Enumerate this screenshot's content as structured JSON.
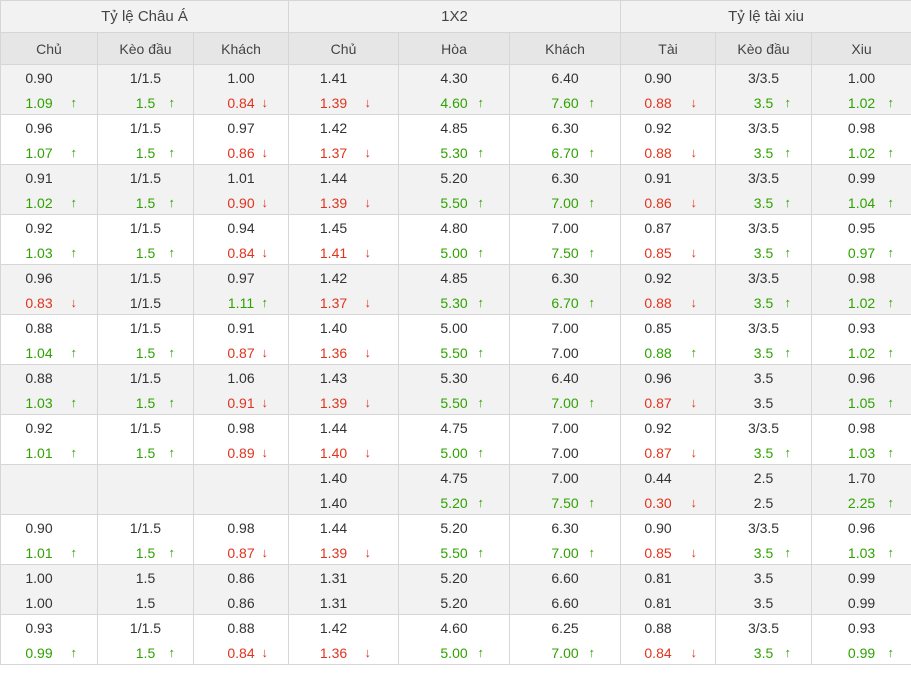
{
  "groups": [
    {
      "label": "Tỷ lệ Châu Á"
    },
    {
      "label": "1X2"
    },
    {
      "label": "Tỷ lệ tài xiu"
    }
  ],
  "columns": [
    {
      "label": "Chủ"
    },
    {
      "label": "Kèo đầu"
    },
    {
      "label": "Khách"
    },
    {
      "label": "Chủ"
    },
    {
      "label": "Hòa"
    },
    {
      "label": "Khách"
    },
    {
      "label": "Tài"
    },
    {
      "label": "Kèo đầu"
    },
    {
      "label": "Xiu"
    }
  ],
  "colors": {
    "up": "#2ea300",
    "down": "#e0341e",
    "text": "#333333"
  },
  "trend_icons": {
    "up": "arrow-up-icon",
    "down": "arrow-down-icon"
  },
  "rows": [
    {
      "cells": [
        {
          "open": "0.90",
          "now": "1.09",
          "trend": "up"
        },
        {
          "open": "1/1.5",
          "now": "1.5",
          "trend": "up"
        },
        {
          "open": "1.00",
          "now": "0.84",
          "trend": "down"
        },
        {
          "open": "1.41",
          "now": "1.39",
          "trend": "down"
        },
        {
          "open": "4.30",
          "now": "4.60",
          "trend": "up"
        },
        {
          "open": "6.40",
          "now": "7.60",
          "trend": "up"
        },
        {
          "open": "0.90",
          "now": "0.88",
          "trend": "down"
        },
        {
          "open": "3/3.5",
          "now": "3.5",
          "trend": "up"
        },
        {
          "open": "1.00",
          "now": "1.02",
          "trend": "up"
        }
      ]
    },
    {
      "cells": [
        {
          "open": "0.96",
          "now": "1.07",
          "trend": "up"
        },
        {
          "open": "1/1.5",
          "now": "1.5",
          "trend": "up"
        },
        {
          "open": "0.97",
          "now": "0.86",
          "trend": "down"
        },
        {
          "open": "1.42",
          "now": "1.37",
          "trend": "down"
        },
        {
          "open": "4.85",
          "now": "5.30",
          "trend": "up"
        },
        {
          "open": "6.30",
          "now": "6.70",
          "trend": "up"
        },
        {
          "open": "0.92",
          "now": "0.88",
          "trend": "down"
        },
        {
          "open": "3/3.5",
          "now": "3.5",
          "trend": "up"
        },
        {
          "open": "0.98",
          "now": "1.02",
          "trend": "up"
        }
      ]
    },
    {
      "cells": [
        {
          "open": "0.91",
          "now": "1.02",
          "trend": "up"
        },
        {
          "open": "1/1.5",
          "now": "1.5",
          "trend": "up"
        },
        {
          "open": "1.01",
          "now": "0.90",
          "trend": "down"
        },
        {
          "open": "1.44",
          "now": "1.39",
          "trend": "down"
        },
        {
          "open": "5.20",
          "now": "5.50",
          "trend": "up"
        },
        {
          "open": "6.30",
          "now": "7.00",
          "trend": "up"
        },
        {
          "open": "0.91",
          "now": "0.86",
          "trend": "down"
        },
        {
          "open": "3/3.5",
          "now": "3.5",
          "trend": "up"
        },
        {
          "open": "0.99",
          "now": "1.04",
          "trend": "up"
        }
      ]
    },
    {
      "cells": [
        {
          "open": "0.92",
          "now": "1.03",
          "trend": "up"
        },
        {
          "open": "1/1.5",
          "now": "1.5",
          "trend": "up"
        },
        {
          "open": "0.94",
          "now": "0.84",
          "trend": "down"
        },
        {
          "open": "1.45",
          "now": "1.41",
          "trend": "down"
        },
        {
          "open": "4.80",
          "now": "5.00",
          "trend": "up"
        },
        {
          "open": "7.00",
          "now": "7.50",
          "trend": "up"
        },
        {
          "open": "0.87",
          "now": "0.85",
          "trend": "down"
        },
        {
          "open": "3/3.5",
          "now": "3.5",
          "trend": "up"
        },
        {
          "open": "0.95",
          "now": "0.97",
          "trend": "up"
        }
      ]
    },
    {
      "cells": [
        {
          "open": "0.96",
          "now": "0.83",
          "trend": "down"
        },
        {
          "open": "1/1.5",
          "now": "1/1.5",
          "trend": "none"
        },
        {
          "open": "0.97",
          "now": "1.11",
          "trend": "up"
        },
        {
          "open": "1.42",
          "now": "1.37",
          "trend": "down"
        },
        {
          "open": "4.85",
          "now": "5.30",
          "trend": "up"
        },
        {
          "open": "6.30",
          "now": "6.70",
          "trend": "up"
        },
        {
          "open": "0.92",
          "now": "0.88",
          "trend": "down"
        },
        {
          "open": "3/3.5",
          "now": "3.5",
          "trend": "up"
        },
        {
          "open": "0.98",
          "now": "1.02",
          "trend": "up"
        }
      ]
    },
    {
      "cells": [
        {
          "open": "0.88",
          "now": "1.04",
          "trend": "up"
        },
        {
          "open": "1/1.5",
          "now": "1.5",
          "trend": "up"
        },
        {
          "open": "0.91",
          "now": "0.87",
          "trend": "down"
        },
        {
          "open": "1.40",
          "now": "1.36",
          "trend": "down"
        },
        {
          "open": "5.00",
          "now": "5.50",
          "trend": "up"
        },
        {
          "open": "7.00",
          "now": "7.00",
          "trend": "none"
        },
        {
          "open": "0.85",
          "now": "0.88",
          "trend": "up"
        },
        {
          "open": "3/3.5",
          "now": "3.5",
          "trend": "up"
        },
        {
          "open": "0.93",
          "now": "1.02",
          "trend": "up"
        }
      ]
    },
    {
      "cells": [
        {
          "open": "0.88",
          "now": "1.03",
          "trend": "up"
        },
        {
          "open": "1/1.5",
          "now": "1.5",
          "trend": "up"
        },
        {
          "open": "1.06",
          "now": "0.91",
          "trend": "down"
        },
        {
          "open": "1.43",
          "now": "1.39",
          "trend": "down"
        },
        {
          "open": "5.30",
          "now": "5.50",
          "trend": "up"
        },
        {
          "open": "6.40",
          "now": "7.00",
          "trend": "up"
        },
        {
          "open": "0.96",
          "now": "0.87",
          "trend": "down"
        },
        {
          "open": "3.5",
          "now": "3.5",
          "trend": "none"
        },
        {
          "open": "0.96",
          "now": "1.05",
          "trend": "up"
        }
      ]
    },
    {
      "cells": [
        {
          "open": "0.92",
          "now": "1.01",
          "trend": "up"
        },
        {
          "open": "1/1.5",
          "now": "1.5",
          "trend": "up"
        },
        {
          "open": "0.98",
          "now": "0.89",
          "trend": "down"
        },
        {
          "open": "1.44",
          "now": "1.40",
          "trend": "down"
        },
        {
          "open": "4.75",
          "now": "5.00",
          "trend": "up"
        },
        {
          "open": "7.00",
          "now": "7.00",
          "trend": "none"
        },
        {
          "open": "0.92",
          "now": "0.87",
          "trend": "down"
        },
        {
          "open": "3/3.5",
          "now": "3.5",
          "trend": "up"
        },
        {
          "open": "0.98",
          "now": "1.03",
          "trend": "up"
        }
      ]
    },
    {
      "cells": [
        {
          "open": "",
          "now": "",
          "trend": "none"
        },
        {
          "open": "",
          "now": "",
          "trend": "none"
        },
        {
          "open": "",
          "now": "",
          "trend": "none"
        },
        {
          "open": "1.40",
          "now": "1.40",
          "trend": "none"
        },
        {
          "open": "4.75",
          "now": "5.20",
          "trend": "up"
        },
        {
          "open": "7.00",
          "now": "7.50",
          "trend": "up"
        },
        {
          "open": "0.44",
          "now": "0.30",
          "trend": "down"
        },
        {
          "open": "2.5",
          "now": "2.5",
          "trend": "none"
        },
        {
          "open": "1.70",
          "now": "2.25",
          "trend": "up"
        }
      ]
    },
    {
      "cells": [
        {
          "open": "0.90",
          "now": "1.01",
          "trend": "up"
        },
        {
          "open": "1/1.5",
          "now": "1.5",
          "trend": "up"
        },
        {
          "open": "0.98",
          "now": "0.87",
          "trend": "down"
        },
        {
          "open": "1.44",
          "now": "1.39",
          "trend": "down"
        },
        {
          "open": "5.20",
          "now": "5.50",
          "trend": "up"
        },
        {
          "open": "6.30",
          "now": "7.00",
          "trend": "up"
        },
        {
          "open": "0.90",
          "now": "0.85",
          "trend": "down"
        },
        {
          "open": "3/3.5",
          "now": "3.5",
          "trend": "up"
        },
        {
          "open": "0.96",
          "now": "1.03",
          "trend": "up"
        }
      ]
    },
    {
      "cells": [
        {
          "open": "1.00",
          "now": "1.00",
          "trend": "none"
        },
        {
          "open": "1.5",
          "now": "1.5",
          "trend": "none"
        },
        {
          "open": "0.86",
          "now": "0.86",
          "trend": "none"
        },
        {
          "open": "1.31",
          "now": "1.31",
          "trend": "none"
        },
        {
          "open": "5.20",
          "now": "5.20",
          "trend": "none"
        },
        {
          "open": "6.60",
          "now": "6.60",
          "trend": "none"
        },
        {
          "open": "0.81",
          "now": "0.81",
          "trend": "none"
        },
        {
          "open": "3.5",
          "now": "3.5",
          "trend": "none"
        },
        {
          "open": "0.99",
          "now": "0.99",
          "trend": "none"
        }
      ]
    },
    {
      "cells": [
        {
          "open": "0.93",
          "now": "0.99",
          "trend": "up"
        },
        {
          "open": "1/1.5",
          "now": "1.5",
          "trend": "up"
        },
        {
          "open": "0.88",
          "now": "0.84",
          "trend": "down"
        },
        {
          "open": "1.42",
          "now": "1.36",
          "trend": "down"
        },
        {
          "open": "4.60",
          "now": "5.00",
          "trend": "up"
        },
        {
          "open": "6.25",
          "now": "7.00",
          "trend": "up"
        },
        {
          "open": "0.88",
          "now": "0.84",
          "trend": "down"
        },
        {
          "open": "3/3.5",
          "now": "3.5",
          "trend": "up"
        },
        {
          "open": "0.93",
          "now": "0.99",
          "trend": "up"
        }
      ]
    }
  ]
}
